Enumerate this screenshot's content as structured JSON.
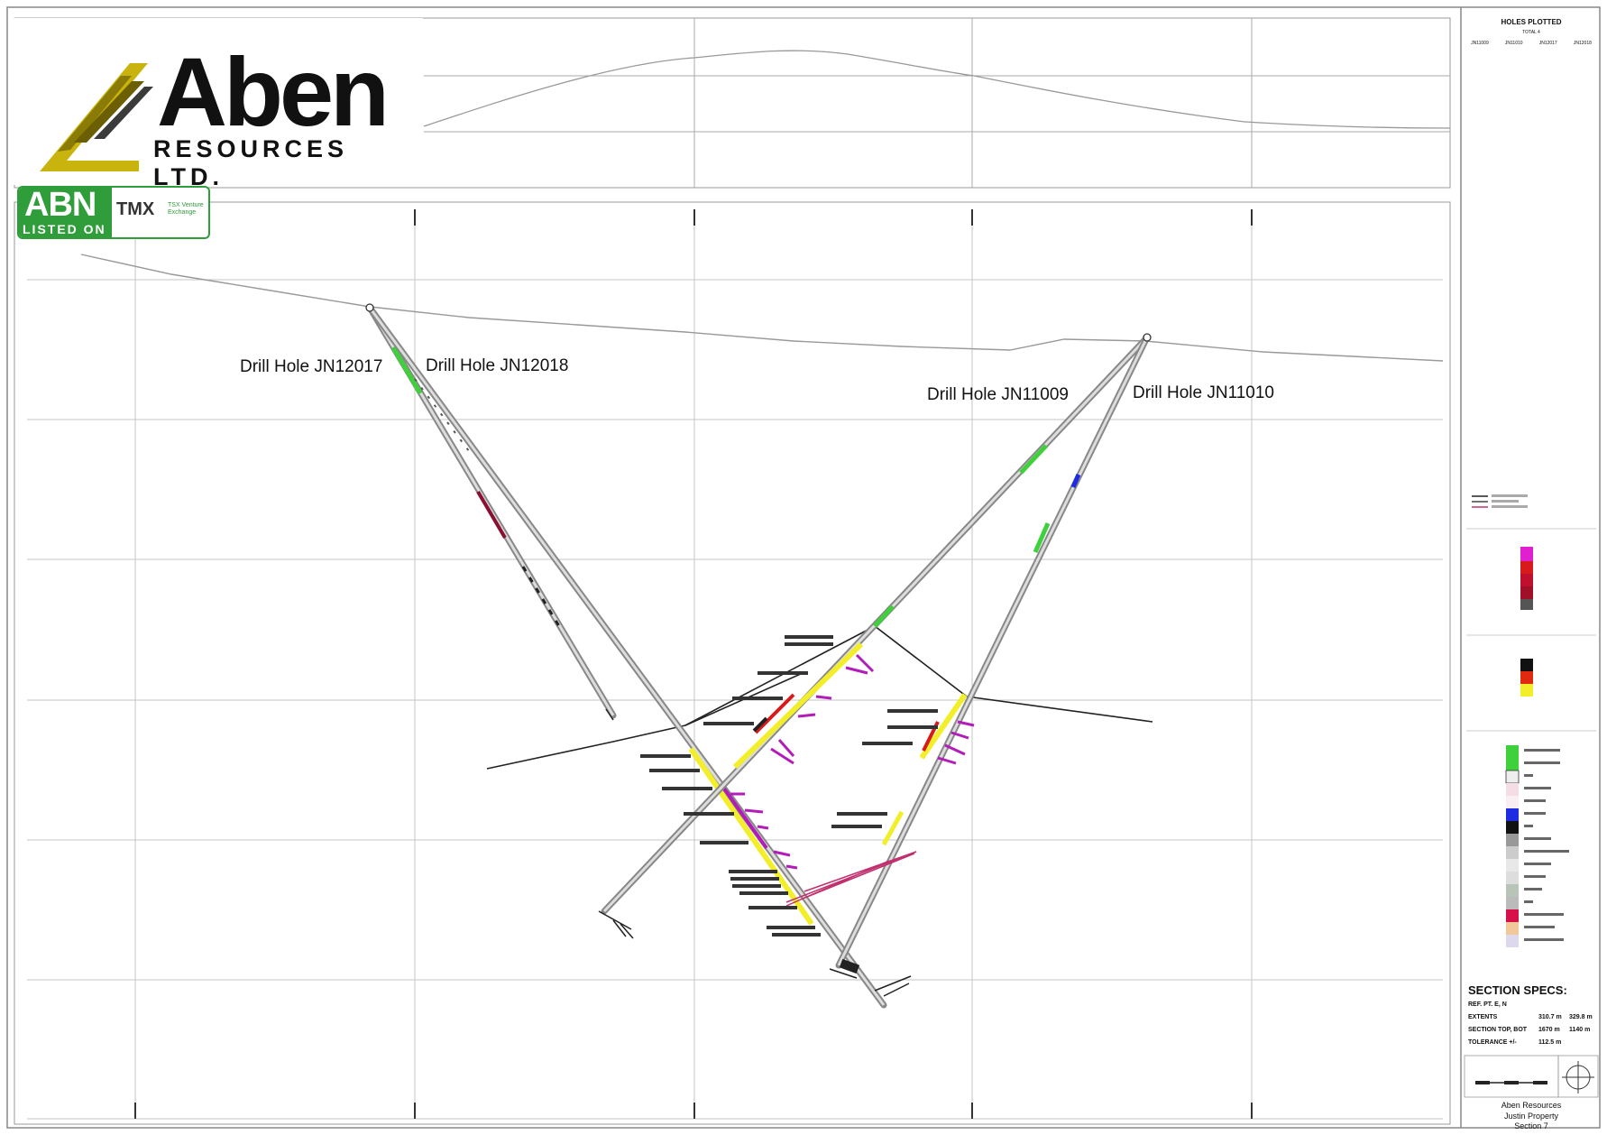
{
  "logo": {
    "name": "Aben",
    "subtitle": "RESOURCES LTD."
  },
  "badge": {
    "ticker": "ABN",
    "listed": "LISTED ON",
    "exchange": "TMX",
    "exchange_sub": "TSX Venture Exchange"
  },
  "drill_holes": [
    {
      "label": "Drill Hole JN12017"
    },
    {
      "label": "Drill Hole JN12018"
    },
    {
      "label": "Drill Hole JN11009"
    },
    {
      "label": "Drill Hole JN11010"
    }
  ],
  "legend": {
    "title": "HOLES PLOTTED",
    "total": "TOTAL 4",
    "holes": [
      "JN11009",
      "JN11010",
      "JN12017",
      "JN12018"
    ]
  },
  "section_specs": {
    "title": "SECTION  SPECS:",
    "rows": [
      {
        "label": "REF. PT. E, N",
        "v1": "",
        "v2": ""
      },
      {
        "label": "EXTENTS",
        "v1": "310.7 m",
        "v2": "329.8 m"
      },
      {
        "label": "SECTION TOP, BOT",
        "v1": "1670 m",
        "v2": "1140 m"
      },
      {
        "label": "TOLERANCE +/-",
        "v1": "112.5 m",
        "v2": ""
      }
    ]
  },
  "footer": {
    "company": "Aben Resources",
    "property": "Justin Property",
    "section": "Section 7"
  },
  "colors": {
    "green": "#3fd13b",
    "yellow": "#f2ee2a",
    "magenta": "#b21cb8",
    "red": "#d71a1a",
    "blue": "#1f2be0",
    "brand_green": "#2f9e3a"
  }
}
